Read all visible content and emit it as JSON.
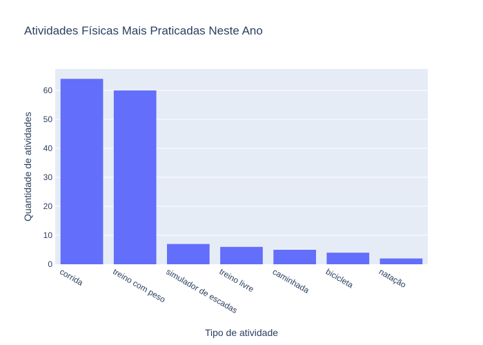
{
  "chart_data": {
    "type": "bar",
    "title": "Atividades Físicas Mais Praticadas Neste Ano",
    "xlabel": "Tipo de atividade",
    "ylabel": "Quantidade de atividades",
    "categories": [
      "corrida",
      "treino com peso",
      "simulador de escadas",
      "treino livre",
      "caminhada",
      "bicicleta",
      "natação"
    ],
    "values": [
      64,
      60,
      7,
      6,
      5,
      4,
      2
    ],
    "ylim": [
      0,
      67.4
    ],
    "yticks": [
      0,
      10,
      20,
      30,
      40,
      50,
      60
    ],
    "grid": true,
    "colors": {
      "bar": "#636efa",
      "plot_bg": "#e5ecf6"
    }
  }
}
